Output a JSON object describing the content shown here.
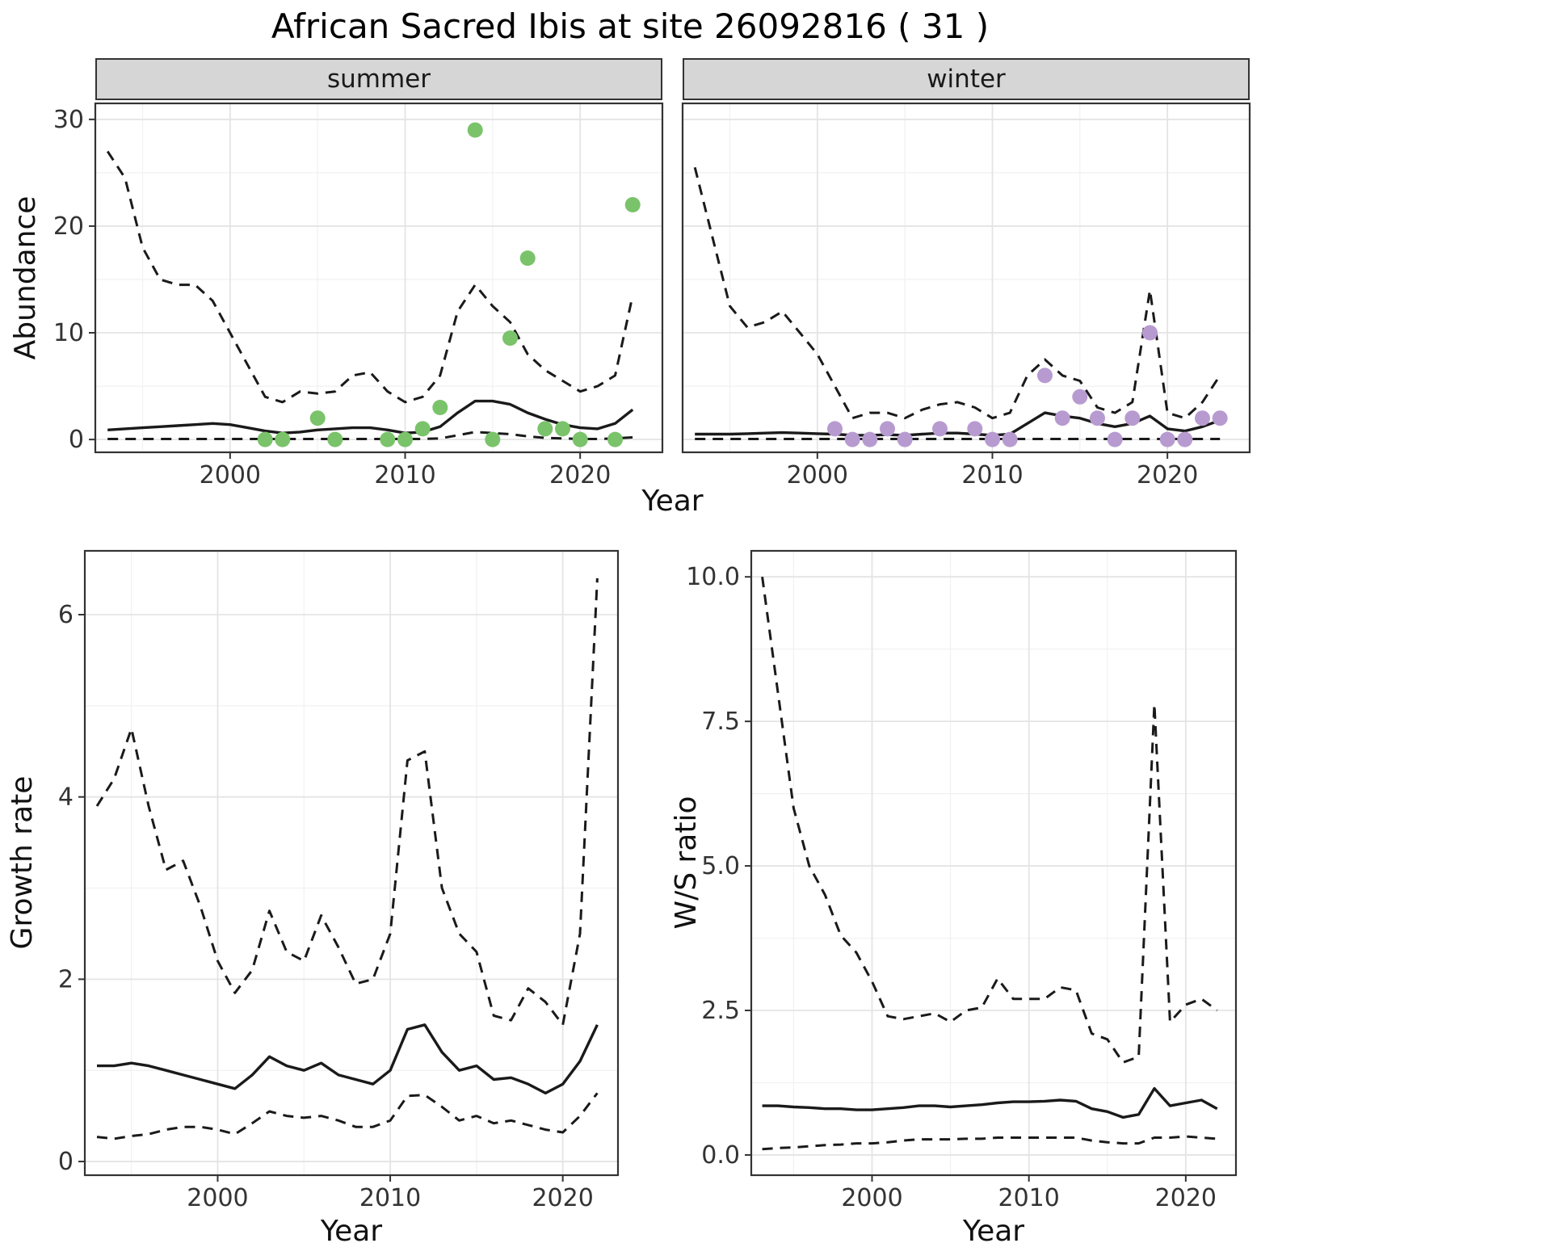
{
  "title": "African Sacred Ibis at site 26092816 ( 31 )",
  "colors": {
    "panel_bg": "#ffffff",
    "grid_major": "#e4e4e4",
    "grid_minor": "#f1f1f1",
    "border": "#333333",
    "line": "#1a1a1a",
    "tick_text": "#333333",
    "summer_point": "#7ac36a",
    "winter_point": "#b79bd0"
  },
  "chart_data": [
    {
      "id": "abundance-summer",
      "type": "line",
      "facet": "summer",
      "xlabel": "Year",
      "ylabel": "Abundance",
      "xlim": [
        1992.3,
        2024.7
      ],
      "ylim": [
        -1.2,
        31.5
      ],
      "xticks": [
        2000,
        2010,
        2020
      ],
      "xtick_labels": [
        "2000",
        "2010",
        "2020"
      ],
      "yticks": [
        0,
        10,
        20,
        30
      ],
      "ytick_labels": [
        "0",
        "10",
        "20",
        "30"
      ],
      "x": [
        1993,
        1994,
        1995,
        1996,
        1997,
        1998,
        1999,
        2000,
        2001,
        2002,
        2003,
        2004,
        2005,
        2006,
        2007,
        2008,
        2009,
        2010,
        2011,
        2012,
        2013,
        2014,
        2015,
        2016,
        2017,
        2018,
        2019,
        2020,
        2021,
        2022,
        2023
      ],
      "series": [
        {
          "name": "upper-ci",
          "style": "dashed",
          "values": [
            27,
            24.5,
            18,
            15,
            14.5,
            14.5,
            13,
            10,
            7,
            4,
            3.5,
            4.5,
            4.3,
            4.5,
            6,
            6.3,
            4.5,
            3.5,
            4,
            6,
            12,
            14.5,
            12.5,
            11,
            8,
            6.5,
            5.5,
            4.5,
            5,
            6,
            13.5
          ]
        },
        {
          "name": "median",
          "style": "solid",
          "values": [
            0.9,
            1,
            1.1,
            1.2,
            1.3,
            1.4,
            1.5,
            1.4,
            1.1,
            0.8,
            0.6,
            0.7,
            0.9,
            1,
            1.1,
            1.1,
            0.9,
            0.6,
            0.7,
            1.2,
            2.5,
            3.6,
            3.6,
            3.3,
            2.5,
            1.9,
            1.4,
            1.1,
            1,
            1.5,
            2.8
          ]
        },
        {
          "name": "lower-ci",
          "style": "dashed",
          "values": [
            0.05,
            0.05,
            0.05,
            0.05,
            0.05,
            0.05,
            0.05,
            0.05,
            0.05,
            0.05,
            0.05,
            0.05,
            0.05,
            0.05,
            0.05,
            0.05,
            0.05,
            0.05,
            0.05,
            0.1,
            0.4,
            0.7,
            0.6,
            0.5,
            0.3,
            0.15,
            0.1,
            0.05,
            0.05,
            0.1,
            0.2
          ]
        }
      ],
      "points": {
        "name": "summer-observation-point",
        "color": "#7ac36a",
        "x": [
          2002,
          2003,
          2005,
          2006,
          2009,
          2010,
          2011,
          2012,
          2014,
          2015,
          2016,
          2017,
          2018,
          2019,
          2020,
          2022,
          2023
        ],
        "y": [
          0,
          0,
          2,
          0,
          0,
          0,
          1,
          3,
          29,
          0,
          9.5,
          17,
          1,
          1,
          0,
          0,
          22
        ]
      }
    },
    {
      "id": "abundance-winter",
      "type": "line",
      "facet": "winter",
      "xlabel": "Year",
      "ylabel": "Abundance",
      "xlim": [
        1992.3,
        2024.7
      ],
      "ylim": [
        -1.2,
        31.5
      ],
      "xticks": [
        2000,
        2010,
        2020
      ],
      "xtick_labels": [
        "2000",
        "2010",
        "2020"
      ],
      "yticks": [
        0,
        10,
        20,
        30
      ],
      "ytick_labels": [
        "0",
        "10",
        "20",
        "30"
      ],
      "x": [
        1993,
        1994,
        1995,
        1996,
        1997,
        1998,
        1999,
        2000,
        2001,
        2002,
        2003,
        2004,
        2005,
        2006,
        2007,
        2008,
        2009,
        2010,
        2011,
        2012,
        2013,
        2014,
        2015,
        2016,
        2017,
        2018,
        2019,
        2020,
        2021,
        2022,
        2023
      ],
      "series": [
        {
          "name": "upper-ci",
          "style": "dashed",
          "values": [
            25.5,
            19,
            12.5,
            10.5,
            11,
            12,
            10,
            8,
            5,
            2,
            2.5,
            2.5,
            2,
            2.8,
            3.3,
            3.5,
            3,
            2,
            2.5,
            6,
            7.5,
            6,
            5.5,
            3,
            2.5,
            3.5,
            14,
            2.5,
            2,
            3.5,
            6
          ]
        },
        {
          "name": "median",
          "style": "solid",
          "values": [
            0.5,
            0.5,
            0.5,
            0.55,
            0.6,
            0.65,
            0.6,
            0.55,
            0.5,
            0.4,
            0.4,
            0.45,
            0.4,
            0.5,
            0.6,
            0.6,
            0.5,
            0.4,
            0.5,
            1.5,
            2.5,
            2.2,
            2,
            1.5,
            1.2,
            1.5,
            2.2,
            1,
            0.8,
            1.2,
            1.8
          ]
        },
        {
          "name": "lower-ci",
          "style": "dashed",
          "values": [
            0.05,
            0.05,
            0.05,
            0.05,
            0.05,
            0.05,
            0.05,
            0.05,
            0.05,
            0.05,
            0.05,
            0.05,
            0.05,
            0.05,
            0.05,
            0.05,
            0.05,
            0.05,
            0.05,
            0.05,
            0.05,
            0.05,
            0.05,
            0.05,
            0.05,
            0.05,
            0.05,
            0.05,
            0.05,
            0.05,
            0.05
          ]
        }
      ],
      "points": {
        "name": "winter-observation-point",
        "color": "#b79bd0",
        "x": [
          2001,
          2002,
          2003,
          2004,
          2005,
          2007,
          2009,
          2010,
          2011,
          2013,
          2014,
          2015,
          2016,
          2017,
          2018,
          2019,
          2020,
          2021,
          2022,
          2023
        ],
        "y": [
          1,
          0,
          0,
          1,
          0,
          1,
          1,
          0,
          0,
          6,
          2,
          4,
          2,
          0,
          2,
          10,
          0,
          0,
          2,
          2
        ]
      }
    },
    {
      "id": "growth-rate",
      "type": "line",
      "facet": "",
      "xlabel": "Year",
      "ylabel": "Growth rate",
      "xlim": [
        1992.3,
        2023.2
      ],
      "ylim": [
        -0.15,
        6.7
      ],
      "xticks": [
        2000,
        2010,
        2020
      ],
      "xtick_labels": [
        "2000",
        "2010",
        "2020"
      ],
      "yticks": [
        0,
        2,
        4,
        6
      ],
      "ytick_labels": [
        "0",
        "2",
        "4",
        "6"
      ],
      "x": [
        1993,
        1994,
        1995,
        1996,
        1997,
        1998,
        1999,
        2000,
        2001,
        2002,
        2003,
        2004,
        2005,
        2006,
        2007,
        2008,
        2009,
        2010,
        2011,
        2012,
        2013,
        2014,
        2015,
        2016,
        2017,
        2018,
        2019,
        2020,
        2021,
        2022
      ],
      "series": [
        {
          "name": "upper-ci",
          "style": "dashed",
          "values": [
            3.9,
            4.2,
            4.75,
            3.9,
            3.2,
            3.3,
            2.8,
            2.2,
            1.85,
            2.1,
            2.75,
            2.3,
            2.2,
            2.7,
            2.35,
            1.95,
            2,
            2.5,
            4.4,
            4.5,
            3,
            2.5,
            2.3,
            1.6,
            1.55,
            1.9,
            1.75,
            1.5,
            2.5,
            6.4
          ]
        },
        {
          "name": "median",
          "style": "solid",
          "values": [
            1.05,
            1.05,
            1.08,
            1.05,
            1,
            0.95,
            0.9,
            0.85,
            0.8,
            0.95,
            1.15,
            1.05,
            1,
            1.08,
            0.95,
            0.9,
            0.85,
            1,
            1.45,
            1.5,
            1.2,
            1,
            1.05,
            0.9,
            0.92,
            0.85,
            0.75,
            0.85,
            1.1,
            1.5
          ]
        },
        {
          "name": "lower-ci",
          "style": "dashed",
          "values": [
            0.27,
            0.25,
            0.28,
            0.3,
            0.35,
            0.38,
            0.38,
            0.35,
            0.3,
            0.42,
            0.55,
            0.5,
            0.48,
            0.5,
            0.45,
            0.38,
            0.38,
            0.45,
            0.72,
            0.73,
            0.6,
            0.45,
            0.5,
            0.42,
            0.45,
            0.4,
            0.35,
            0.32,
            0.5,
            0.75
          ]
        }
      ]
    },
    {
      "id": "ws-ratio",
      "type": "line",
      "facet": "",
      "xlabel": "Year",
      "ylabel": "W/S ratio",
      "xlim": [
        1992.3,
        2023.2
      ],
      "ylim": [
        -0.35,
        10.45
      ],
      "xticks": [
        2000,
        2010,
        2020
      ],
      "xtick_labels": [
        "2000",
        "2010",
        "2020"
      ],
      "yticks": [
        0,
        2.5,
        5,
        7.5,
        10
      ],
      "ytick_labels": [
        "0.0",
        "2.5",
        "5.0",
        "7.5",
        "10.0"
      ],
      "x": [
        1993,
        1994,
        1995,
        1996,
        1997,
        1998,
        1999,
        2000,
        2001,
        2002,
        2003,
        2004,
        2005,
        2006,
        2007,
        2008,
        2009,
        2010,
        2011,
        2012,
        2013,
        2014,
        2015,
        2016,
        2017,
        2018,
        2019,
        2020,
        2021,
        2022
      ],
      "series": [
        {
          "name": "upper-ci",
          "style": "dashed",
          "values": [
            10,
            8,
            6,
            5,
            4.5,
            3.8,
            3.5,
            3,
            2.4,
            2.35,
            2.4,
            2.45,
            2.3,
            2.5,
            2.55,
            3.05,
            2.7,
            2.7,
            2.7,
            2.9,
            2.85,
            2.1,
            2,
            1.6,
            1.7,
            7.8,
            2.3,
            2.6,
            2.7,
            2.5
          ]
        },
        {
          "name": "median",
          "style": "solid",
          "values": [
            0.85,
            0.85,
            0.83,
            0.82,
            0.8,
            0.8,
            0.78,
            0.78,
            0.8,
            0.82,
            0.85,
            0.85,
            0.83,
            0.85,
            0.87,
            0.9,
            0.92,
            0.92,
            0.93,
            0.95,
            0.93,
            0.8,
            0.75,
            0.65,
            0.7,
            1.15,
            0.85,
            0.9,
            0.95,
            0.8
          ]
        },
        {
          "name": "lower-ci",
          "style": "dashed",
          "values": [
            0.1,
            0.12,
            0.13,
            0.15,
            0.17,
            0.18,
            0.2,
            0.2,
            0.22,
            0.25,
            0.27,
            0.27,
            0.27,
            0.28,
            0.28,
            0.3,
            0.3,
            0.3,
            0.3,
            0.3,
            0.3,
            0.25,
            0.22,
            0.2,
            0.2,
            0.3,
            0.3,
            0.32,
            0.3,
            0.28
          ]
        }
      ]
    }
  ]
}
